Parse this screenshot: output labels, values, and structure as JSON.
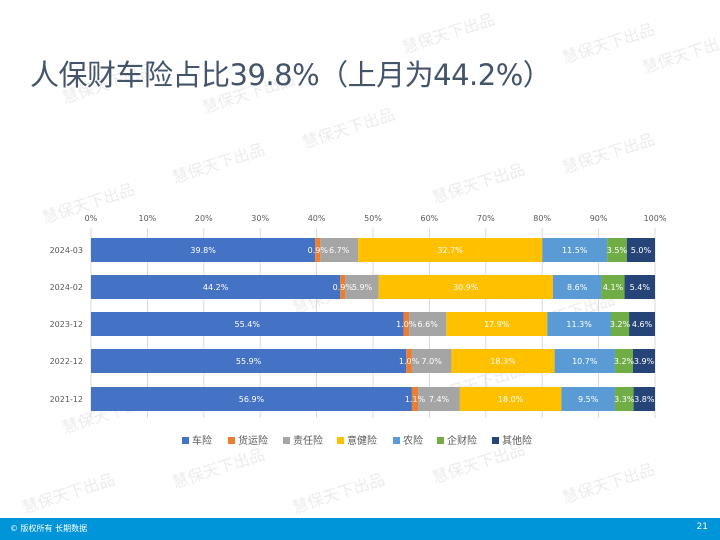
{
  "title": "人保财车险占比39.8%（上月为44.2%）",
  "watermark_text": "慧保天下出品",
  "footer": {
    "copyright": "© 版权所有 长期数据",
    "page_number": "21"
  },
  "chart_data": {
    "type": "bar",
    "orientation": "horizontal",
    "stacked": "percent",
    "title": "",
    "xlabel": "",
    "ylabel": "",
    "xlim": [
      0,
      100
    ],
    "x_ticks": [
      "0%",
      "10%",
      "20%",
      "30%",
      "40%",
      "50%",
      "60%",
      "70%",
      "80%",
      "90%",
      "100%"
    ],
    "grid": true,
    "legend_position": "bottom",
    "categories": [
      "2024-03",
      "2024-02",
      "2023-12",
      "2022-12",
      "2021-12"
    ],
    "series": [
      {
        "name": "车险",
        "color": "#4472c4",
        "values": [
          39.8,
          44.2,
          55.4,
          55.9,
          56.9
        ],
        "labels": [
          "39.8%",
          "44.2%",
          "55.4%",
          "55.9%",
          "56.9%"
        ]
      },
      {
        "name": "货运险",
        "color": "#ed7d31",
        "values": [
          0.9,
          0.9,
          1.0,
          1.0,
          1.1
        ],
        "labels": [
          "0.9%",
          "0.9%",
          "1.0%",
          "1.0%",
          "1.1%"
        ]
      },
      {
        "name": "责任险",
        "color": "#a5a5a5",
        "values": [
          6.7,
          5.9,
          6.6,
          7.0,
          7.4
        ],
        "labels": [
          "6.7%",
          "5.9%",
          "6.6%",
          "7.0%",
          "7.4%"
        ]
      },
      {
        "name": "意健险",
        "color": "#ffc000",
        "values": [
          32.7,
          30.9,
          17.9,
          18.3,
          18.0
        ],
        "labels": [
          "32.7%",
          "30.9%",
          "17.9%",
          "18.3%",
          "18.0%"
        ]
      },
      {
        "name": "农险",
        "color": "#5b9bd5",
        "values": [
          11.5,
          8.6,
          11.3,
          10.7,
          9.5
        ],
        "labels": [
          "11.5%",
          "8.6%",
          "11.3%",
          "10.7%",
          "9.5%"
        ]
      },
      {
        "name": "企财险",
        "color": "#70ad47",
        "values": [
          3.5,
          4.1,
          3.2,
          3.2,
          3.3
        ],
        "labels": [
          "3.5%",
          "4.1%",
          "3.2%",
          "3.2%",
          "3.3%"
        ]
      },
      {
        "name": "其他险",
        "color": "#264478",
        "values": [
          5.0,
          5.4,
          4.6,
          3.9,
          3.8
        ],
        "labels": [
          "5.0%",
          "5.4%",
          "4.6%",
          "3.9%",
          "3.8%"
        ]
      }
    ]
  }
}
